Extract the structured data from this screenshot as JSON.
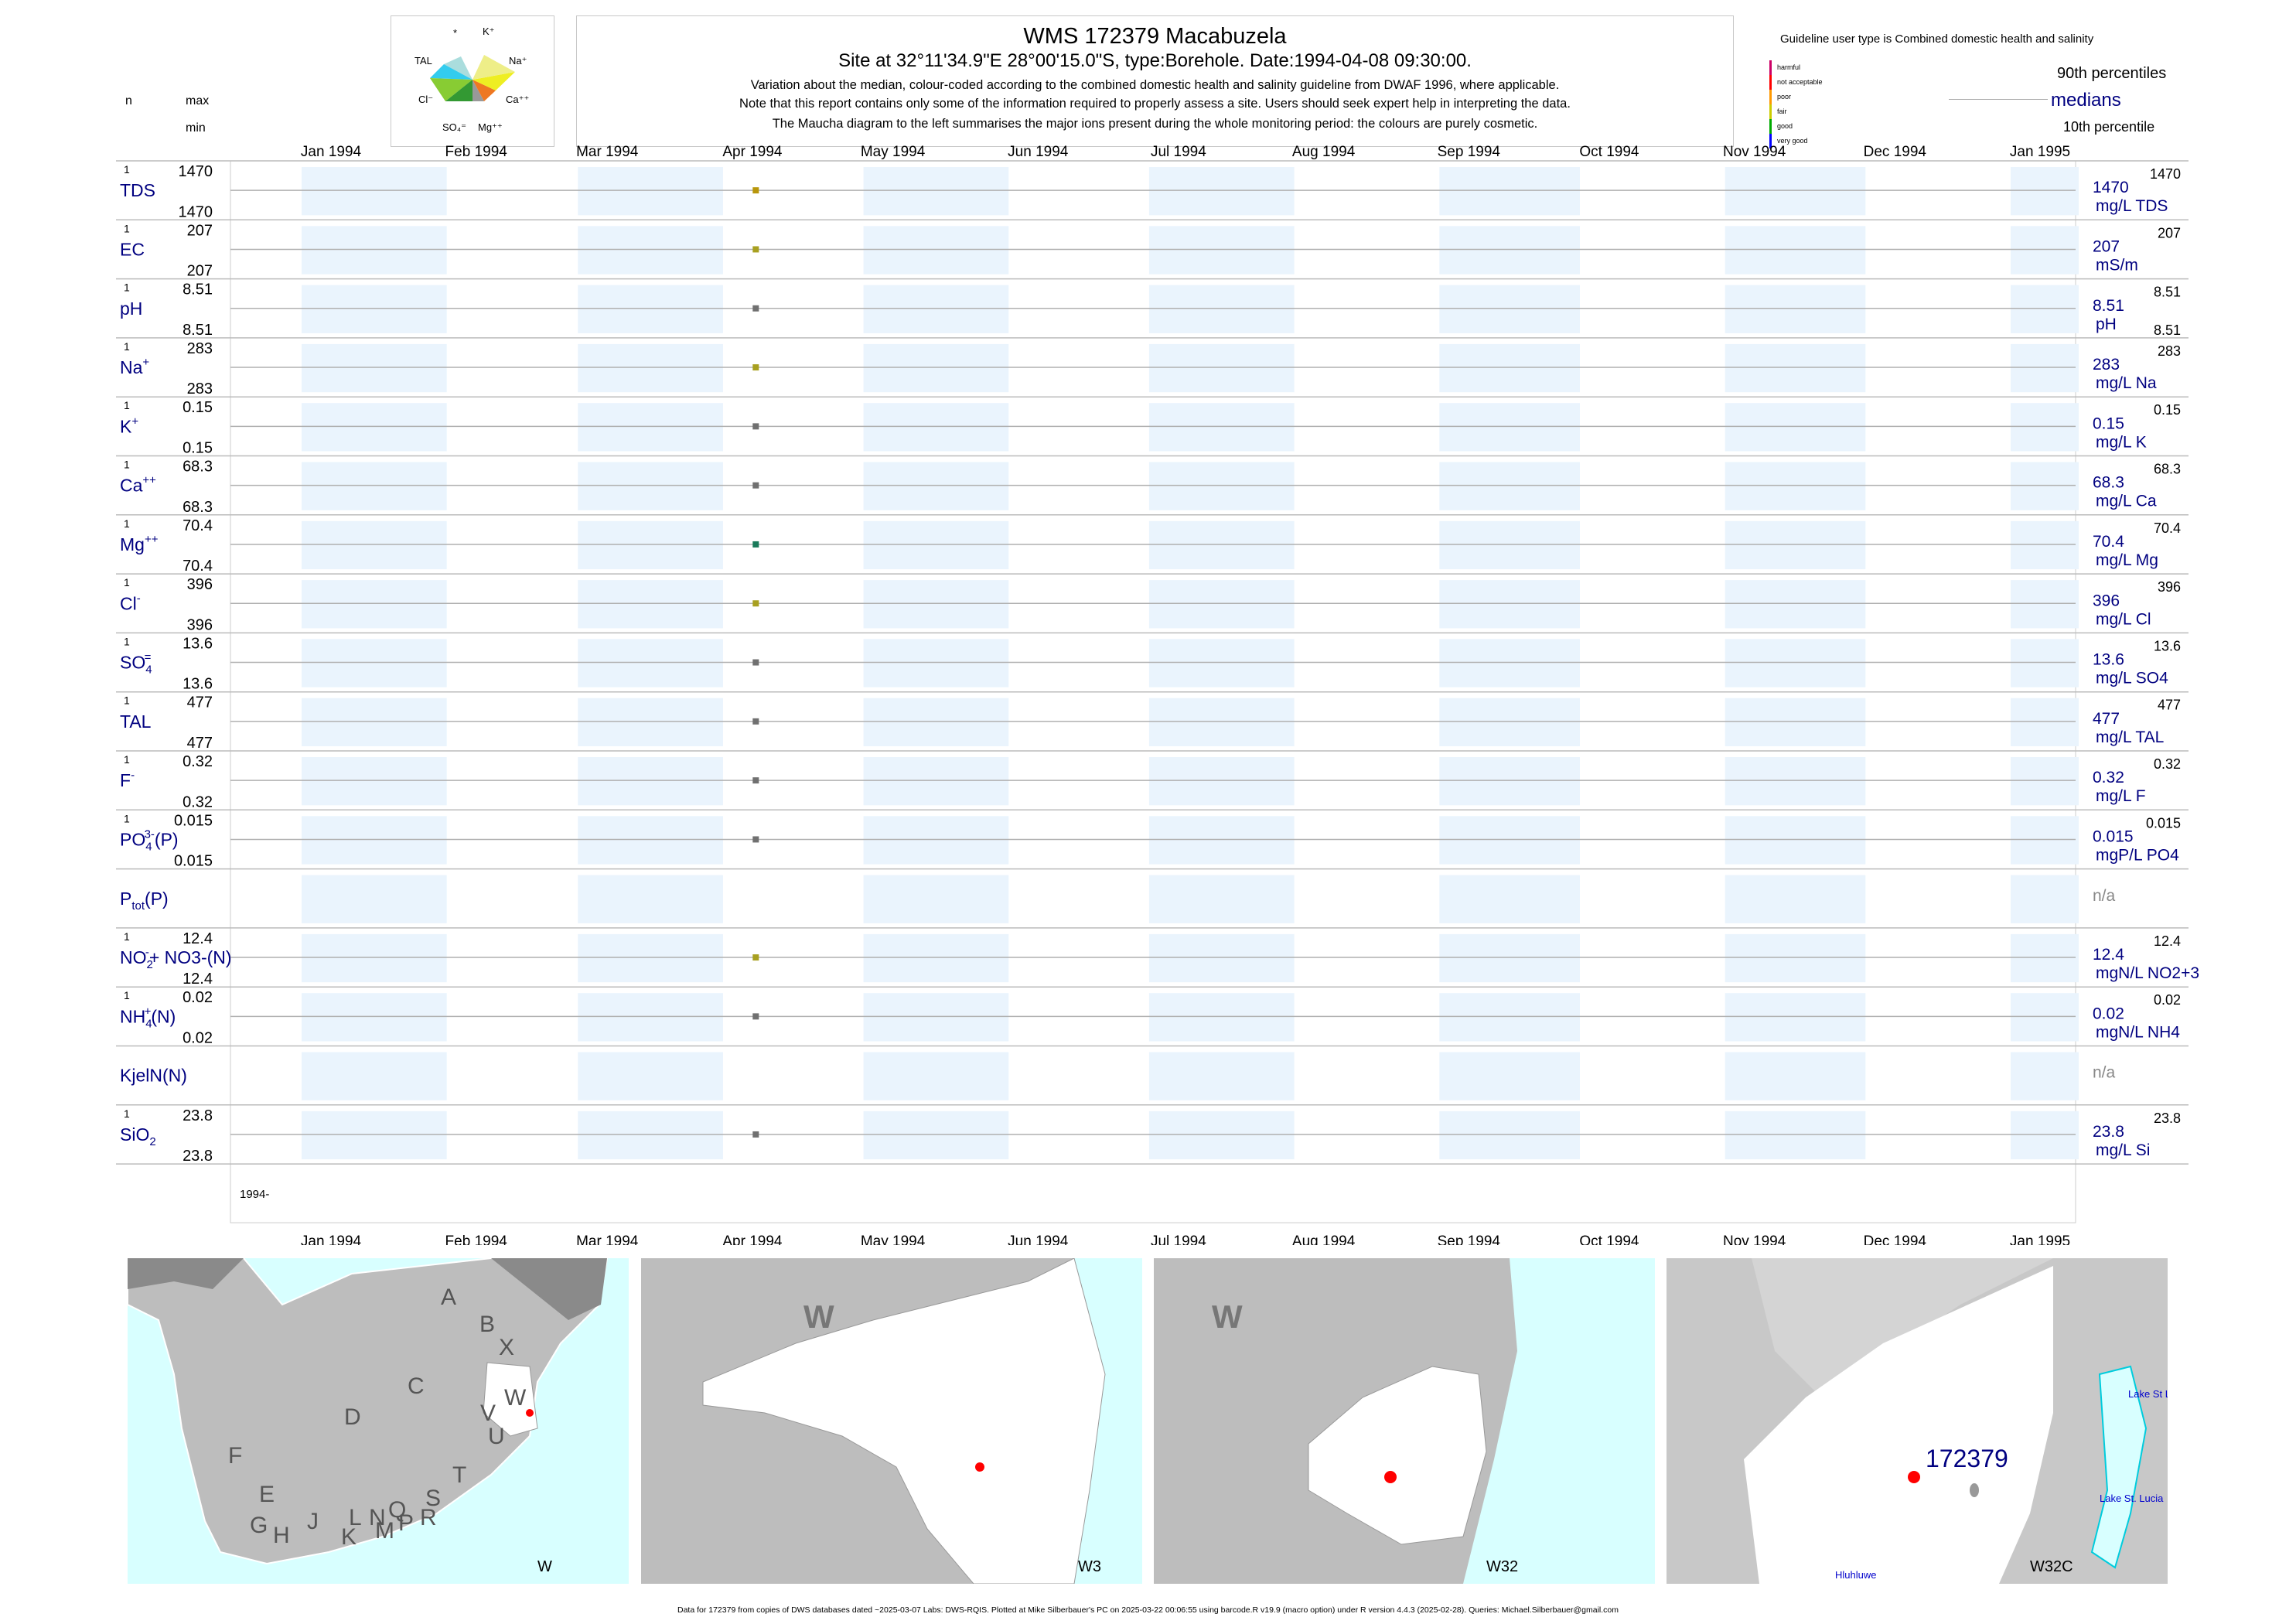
{
  "header": {
    "title": "WMS 172379  Macabuzela",
    "subtitle": "Site at 32°11'34.9\"E 28°00'15.0\"S, type:Borehole. Date:1994-04-08 09:30:00.",
    "notes": [
      "Variation about the median,  colour-coded according to the combined domestic health and salinity guideline from DWAF 1996, where applicable.",
      "Note that this report contains only some of the information required to properly assess a site. Users should seek expert help in interpreting the data.",
      "The Maucha diagram to the left summarises the major ions present during the whole monitoring period: the colours are purely cosmetic."
    ]
  },
  "left_labels": {
    "n": "n",
    "max": "max",
    "min": "min"
  },
  "maucha": {
    "labels": [
      "*",
      "K+",
      "TAL",
      "Na+",
      "Cl-",
      "Ca++",
      "SO4=",
      "Mg++"
    ]
  },
  "guideline": {
    "title": "Guideline user type is Combined domestic health and salinity",
    "categories": [
      {
        "label": "harmful",
        "color": "#cc0066"
      },
      {
        "label": "not acceptable",
        "color": "#ff0000"
      },
      {
        "label": "poor",
        "color": "#ff9900"
      },
      {
        "label": "fair",
        "color": "#cccc00"
      },
      {
        "label": "good",
        "color": "#00aa00"
      },
      {
        "label": "very good",
        "color": "#0000ff"
      }
    ],
    "p90": "90th percentiles",
    "medians": "medians",
    "p10": "10th percentile"
  },
  "chart_data": {
    "type": "scatter",
    "x_axis": {
      "ticks": [
        "Jan 1994",
        "Feb 1994",
        "Mar 1994",
        "Apr 1994",
        "May 1994",
        "Jun 1994",
        "Jul 1994",
        "Aug 1994",
        "Sep 1994",
        "Oct 1994",
        "Nov 1994",
        "Dec 1994",
        "Jan 1995"
      ],
      "range": [
        "1994-01-01",
        "1995-01-01"
      ],
      "year_label": "1994-"
    },
    "sample_date": "1994-04-08",
    "panels": [
      {
        "param": "TDS",
        "sup": "",
        "sub": "",
        "n": "1",
        "max": "1470",
        "min": "1470",
        "median": "1470",
        "unit": "mg/L TDS",
        "p90": "1470",
        "p10": "",
        "value": 1470,
        "color": "#b8960a"
      },
      {
        "param": "EC",
        "sup": "",
        "sub": "",
        "n": "1",
        "max": "207",
        "min": "207",
        "median": "207",
        "unit": "mS/m",
        "p90": "207",
        "p10": "",
        "value": 207,
        "color": "#a8a020"
      },
      {
        "param": "pH",
        "sup": "",
        "sub": "",
        "n": "1",
        "max": "8.51",
        "min": "8.51",
        "median": "8.51",
        "unit": "pH",
        "p90": "8.51",
        "p10": "8.51",
        "value": 8.51,
        "color": "#707070"
      },
      {
        "param": "Na",
        "sup": "+",
        "sub": "",
        "n": "1",
        "max": "283",
        "min": "283",
        "median": "283",
        "unit": "mg/L Na",
        "p90": "283",
        "p10": "",
        "value": 283,
        "color": "#a8a020"
      },
      {
        "param": "K",
        "sup": "+",
        "sub": "",
        "n": "1",
        "max": "0.15",
        "min": "0.15",
        "median": "0.15",
        "unit": "mg/L K",
        "p90": "0.15",
        "p10": "",
        "value": 0.15,
        "color": "#707070"
      },
      {
        "param": "Ca",
        "sup": "++",
        "sub": "",
        "n": "1",
        "max": "68.3",
        "min": "68.3",
        "median": "68.3",
        "unit": "mg/L Ca",
        "p90": "68.3",
        "p10": "",
        "value": 68.3,
        "color": "#707070"
      },
      {
        "param": "Mg",
        "sup": "++",
        "sub": "",
        "n": "1",
        "max": "70.4",
        "min": "70.4",
        "median": "70.4",
        "unit": "mg/L Mg",
        "p90": "70.4",
        "p10": "",
        "value": 70.4,
        "color": "#1a7a5a"
      },
      {
        "param": "Cl",
        "sup": "-",
        "sub": "",
        "n": "1",
        "max": "396",
        "min": "396",
        "median": "396",
        "unit": "mg/L Cl",
        "p90": "396",
        "p10": "",
        "value": 396,
        "color": "#a8a020"
      },
      {
        "param": "SO",
        "sup": "=",
        "sub": "4",
        "n": "1",
        "max": "13.6",
        "min": "13.6",
        "median": "13.6",
        "unit": "mg/L SO4",
        "p90": "13.6",
        "p10": "",
        "value": 13.6,
        "color": "#707070"
      },
      {
        "param": "TAL",
        "sup": "",
        "sub": "",
        "n": "1",
        "max": "477",
        "min": "477",
        "median": "477",
        "unit": "mg/L TAL",
        "p90": "477",
        "p10": "",
        "value": 477,
        "color": "#707070"
      },
      {
        "param": "F",
        "sup": "-",
        "sub": "",
        "n": "1",
        "max": "0.32",
        "min": "0.32",
        "median": "0.32",
        "unit": "mg/L F",
        "p90": "0.32",
        "p10": "",
        "value": 0.32,
        "color": "#707070"
      },
      {
        "param": "PO",
        "sup": "3-",
        "sub": "4",
        "tail": "(P)",
        "n": "1",
        "max": "0.015",
        "min": "0.015",
        "median": "0.015",
        "unit": "mgP/L PO4",
        "p90": "0.015",
        "p10": "",
        "value": 0.015,
        "color": "#707070"
      },
      {
        "param": "P",
        "sup": "",
        "sub": "tot",
        "tail": "(P)",
        "n": "",
        "max": "",
        "min": "",
        "median": "n/a",
        "unit": "",
        "p90": "",
        "p10": "",
        "value": null,
        "color": ""
      },
      {
        "param": "NO",
        "sup": "-",
        "sub": "2",
        "tail": "+ NO3-(N)",
        "n": "1",
        "max": "12.4",
        "min": "12.4",
        "median": "12.4",
        "unit": "mgN/L NO2+3",
        "p90": "12.4",
        "p10": "",
        "value": 12.4,
        "color": "#a8a020"
      },
      {
        "param": "NH",
        "sup": "+",
        "sub": "4",
        "tail": "(N)",
        "n": "1",
        "max": "0.02",
        "min": "0.02",
        "median": "0.02",
        "unit": "mgN/L NH4",
        "p90": "0.02",
        "p10": "",
        "value": 0.02,
        "color": "#707070"
      },
      {
        "param": "KjelN(N)",
        "sup": "",
        "sub": "",
        "n": "",
        "max": "",
        "min": "",
        "median": "n/a",
        "unit": "",
        "p90": "",
        "p10": "",
        "value": null,
        "color": ""
      },
      {
        "param": "SiO",
        "sup": "",
        "sub": "2",
        "n": "1",
        "max": "23.8",
        "min": "23.8",
        "median": "23.8",
        "unit": "mg/L Si",
        "p90": "23.8",
        "p10": "",
        "value": 23.8,
        "color": "#707070"
      }
    ]
  },
  "maps": [
    {
      "caption": "W",
      "letters": [
        "A",
        "B",
        "X",
        "C",
        "W",
        "D",
        "V",
        "U",
        "F",
        "T",
        "E",
        "S",
        "G",
        "H",
        "J",
        "L",
        "N",
        "Q",
        "R",
        "K",
        "M",
        "P"
      ]
    },
    {
      "caption": "W3",
      "letters": [
        "W"
      ]
    },
    {
      "caption": "W32",
      "letters": [
        "W"
      ]
    },
    {
      "caption": "W32C",
      "site_label": "172379",
      "places": [
        "Lake St L",
        "Lake St. Lucia",
        "Hluhluwe"
      ]
    }
  ],
  "footer": "Data for 172379 from copies of DWS databases dated ~2025-03-07 Labs: DWS-RQIS. Plotted at Mike Silberbauer's PC on 2025-03-22 00:06:55 using barcode.R v19.9 (macro option) under R version 4.4.3 (2025-02-28). Queries: Michael.Silberbauer@gmail.com"
}
